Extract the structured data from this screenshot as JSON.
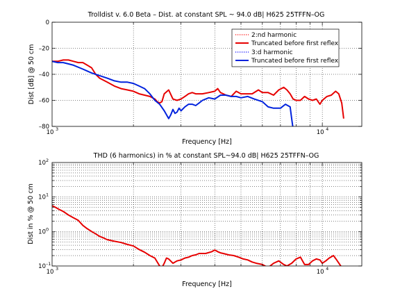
{
  "chart_data": [
    {
      "type": "line",
      "title": "Trolldist v. 6.0 Beta – Dist. at constant SPL ~ 94.0 dB| H625 25TFFN–OG",
      "xlabel": "Frequency [Hz]",
      "ylabel": "Dist [dB] @ 50 cm",
      "xscale": "log",
      "xlim": [
        1000,
        14000
      ],
      "ylim": [
        -80,
        0
      ],
      "yticks": [
        0,
        -20,
        -40,
        -60,
        -80
      ],
      "ytick_labels": [
        "0",
        "–20",
        "–40",
        "–60",
        "–80"
      ],
      "xtick_labels": [
        {
          "base": "10",
          "exp": "3"
        },
        {
          "base": "10",
          "exp": "4"
        }
      ],
      "grid": true,
      "legend_position": "top-right",
      "series": [
        {
          "name": "2:nd harmonic",
          "color": "#ff0000",
          "dash": "dotted",
          "x": [],
          "y": []
        },
        {
          "name": "Truncated before first reflex",
          "color": "#e60000",
          "dash": "solid",
          "x": [
            1000,
            1050,
            1100,
            1150,
            1200,
            1250,
            1300,
            1350,
            1400,
            1450,
            1500,
            1600,
            1700,
            1800,
            1900,
            2000,
            2100,
            2200,
            2300,
            2400,
            2450,
            2500,
            2550,
            2600,
            2700,
            2800,
            2900,
            3000,
            3100,
            3200,
            3300,
            3400,
            3600,
            3800,
            4000,
            4100,
            4200,
            4300,
            4400,
            4600,
            4800,
            5000,
            5200,
            5500,
            5800,
            6000,
            6300,
            6600,
            6900,
            7200,
            7400,
            7600,
            7800,
            8000,
            8300,
            8600,
            8900,
            9200,
            9500,
            9800,
            10000,
            10400,
            10800,
            11200,
            11500,
            11800,
            12000
          ],
          "y": [
            -30,
            -30,
            -29,
            -29,
            -30,
            -31,
            -31,
            -33,
            -35,
            -40,
            -43,
            -46,
            -49,
            -51,
            -52,
            -53,
            -55,
            -56,
            -57,
            -59,
            -61,
            -62,
            -61,
            -55,
            -52,
            -59,
            -60,
            -59,
            -57,
            -55,
            -54,
            -55,
            -55,
            -54,
            -53,
            -51,
            -54,
            -55,
            -56,
            -57,
            -53,
            -55,
            -55,
            -55,
            -52,
            -54,
            -54,
            -56,
            -52,
            -50,
            -52,
            -55,
            -59,
            -60,
            -60,
            -57,
            -59,
            -60,
            -59,
            -63,
            -60,
            -57,
            -56,
            -53,
            -55,
            -62,
            -74
          ]
        },
        {
          "name": "3:d harmonic",
          "color": "#0000ff",
          "dash": "dotted",
          "x": [],
          "y": []
        },
        {
          "name": "Truncated before first reflex",
          "color": "#0022dd",
          "dash": "solid",
          "x": [
            1000,
            1050,
            1100,
            1150,
            1200,
            1300,
            1400,
            1500,
            1600,
            1700,
            1800,
            1900,
            2000,
            2100,
            2200,
            2300,
            2400,
            2500,
            2600,
            2700,
            2750,
            2800,
            2850,
            2900,
            2950,
            3000,
            3100,
            3200,
            3300,
            3400,
            3500,
            3600,
            3800,
            4000,
            4200,
            4400,
            4600,
            4800,
            5000,
            5300,
            5600,
            6000,
            6300,
            6600,
            7000,
            7300,
            7600,
            7700,
            7800
          ],
          "y": [
            -30,
            -31,
            -31,
            -32,
            -33,
            -36,
            -39,
            -41,
            -43,
            -45,
            -46,
            -46,
            -47,
            -49,
            -51,
            -55,
            -60,
            -63,
            -68,
            -74,
            -71,
            -67,
            -70,
            -69,
            -66,
            -68,
            -65,
            -63,
            -63,
            -64,
            -62,
            -60,
            -58,
            -59,
            -56,
            -56,
            -57,
            -57,
            -58,
            -57,
            -59,
            -61,
            -65,
            -66,
            -66,
            -63,
            -65,
            -74,
            -82
          ]
        }
      ]
    },
    {
      "type": "line",
      "title": "THD (6 harmonics) in % at constant SPL~94.0 dB| H625 25TFFN–OG",
      "xlabel": "Frequency [Hz]",
      "ylabel": "Dist in % @ 50 cm",
      "xscale": "log",
      "yscale": "log",
      "xlim": [
        1000,
        14000
      ],
      "ylim": [
        0.1,
        100
      ],
      "ytick_labels": [
        {
          "base": "10",
          "exp": "2"
        },
        {
          "base": "10",
          "exp": "1"
        },
        {
          "base": "10",
          "exp": "0"
        },
        {
          "base": "10",
          "exp": "–1"
        }
      ],
      "xtick_labels": [
        {
          "base": "10",
          "exp": "3"
        },
        {
          "base": "10",
          "exp": "4"
        }
      ],
      "grid": true,
      "series": [
        {
          "name": "",
          "color": "#e60000",
          "dash": "solid",
          "x": [
            1000,
            1030,
            1060,
            1100,
            1150,
            1200,
            1250,
            1300,
            1350,
            1400,
            1450,
            1500,
            1550,
            1600,
            1700,
            1800,
            1900,
            2000,
            2100,
            2200,
            2300,
            2400,
            2450,
            2500,
            2550,
            2600,
            2650,
            2700,
            2800,
            2900,
            3000,
            3100,
            3200,
            3300,
            3400,
            3500,
            3700,
            3900,
            4000,
            4100,
            4200,
            4300,
            4500,
            4700,
            4900,
            5100,
            5300,
            5500,
            5700,
            6000,
            6300,
            6600,
            6900,
            7200,
            7400,
            7700,
            8000,
            8300,
            8600,
            8900,
            9200,
            9500,
            9800,
            10000,
            10300,
            10600,
            11000,
            11300,
            11700,
            12000
          ],
          "y": [
            5.6,
            5.0,
            4.4,
            3.8,
            3.0,
            2.5,
            2.1,
            1.5,
            1.2,
            1.0,
            0.85,
            0.72,
            0.65,
            0.58,
            0.52,
            0.48,
            0.42,
            0.38,
            0.3,
            0.25,
            0.2,
            0.17,
            0.13,
            0.1,
            0.09,
            0.12,
            0.17,
            0.16,
            0.12,
            0.14,
            0.15,
            0.17,
            0.18,
            0.2,
            0.21,
            0.23,
            0.23,
            0.26,
            0.29,
            0.26,
            0.24,
            0.23,
            0.21,
            0.2,
            0.18,
            0.16,
            0.15,
            0.13,
            0.12,
            0.11,
            0.09,
            0.12,
            0.14,
            0.11,
            0.1,
            0.12,
            0.16,
            0.18,
            0.11,
            0.11,
            0.14,
            0.16,
            0.15,
            0.12,
            0.14,
            0.17,
            0.2,
            0.15,
            0.1,
            0.08
          ]
        }
      ]
    }
  ]
}
